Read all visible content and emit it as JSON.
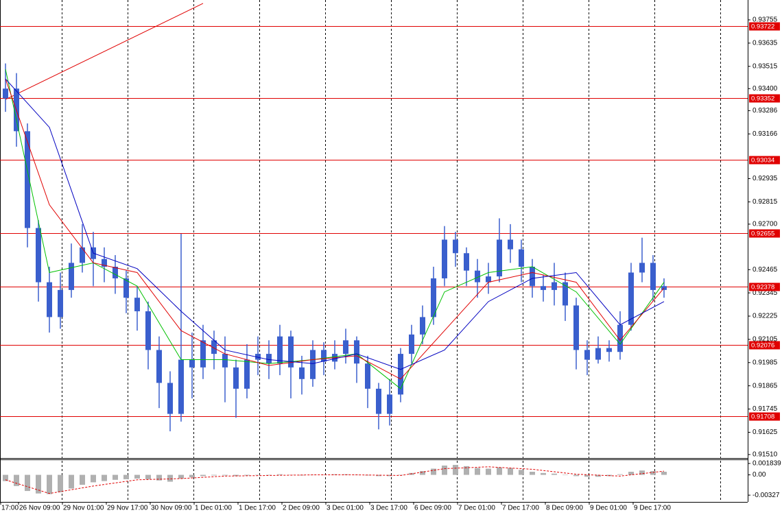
{
  "chart_data": {
    "type": "candlestick",
    "candle_color": "#3a5fcd",
    "open": [
      0.9335,
      0.934,
      0.9318,
      0.9268,
      0.924,
      0.9222,
      0.9236,
      0.925,
      0.9258,
      0.9252,
      0.9248,
      0.9242,
      0.9232,
      0.9225,
      0.9205,
      0.9188,
      0.9172,
      0.92,
      0.9196,
      0.921,
      0.9203,
      0.9196,
      0.9185,
      0.92,
      0.9203,
      0.9198,
      0.9212,
      0.9196,
      0.919,
      0.9205,
      0.9199,
      0.9203,
      0.921,
      0.9198,
      0.9185,
      0.9172,
      0.9182,
      0.9203,
      0.9213,
      0.9222,
      0.9242,
      0.9262,
      0.9255,
      0.9246,
      0.924,
      0.9243,
      0.9262,
      0.9257,
      0.9248,
      0.9238,
      0.9236,
      0.924,
      0.9228,
      0.9205,
      0.92,
      0.9206,
      0.9204,
      0.9218,
      0.9245,
      0.925,
      0.9236
    ],
    "high": [
      0.9353,
      0.9348,
      0.9322,
      0.9272,
      0.9248,
      0.9245,
      0.926,
      0.927,
      0.9266,
      0.9258,
      0.9254,
      0.9246,
      0.9238,
      0.923,
      0.9212,
      0.9194,
      0.9265,
      0.9214,
      0.9218,
      0.9215,
      0.9212,
      0.92,
      0.9208,
      0.9212,
      0.921,
      0.9218,
      0.9215,
      0.9202,
      0.921,
      0.9209,
      0.921,
      0.9216,
      0.9212,
      0.9202,
      0.9188,
      0.919,
      0.9206,
      0.9218,
      0.9228,
      0.9248,
      0.9269,
      0.9266,
      0.9258,
      0.9252,
      0.925,
      0.9273,
      0.927,
      0.9262,
      0.9252,
      0.9244,
      0.925,
      0.9245,
      0.9232,
      0.921,
      0.9212,
      0.921,
      0.9225,
      0.925,
      0.9263,
      0.9254,
      0.9242
    ],
    "low": [
      0.9328,
      0.931,
      0.9258,
      0.923,
      0.9214,
      0.9216,
      0.9232,
      0.9245,
      0.9238,
      0.924,
      0.9234,
      0.9224,
      0.9215,
      0.9195,
      0.9175,
      0.9163,
      0.9168,
      0.918,
      0.919,
      0.9195,
      0.9178,
      0.917,
      0.918,
      0.9192,
      0.919,
      0.9192,
      0.918,
      0.9182,
      0.9186,
      0.9192,
      0.9195,
      0.9198,
      0.9188,
      0.9175,
      0.9164,
      0.9166,
      0.9178,
      0.9198,
      0.9208,
      0.9218,
      0.9238,
      0.9248,
      0.9238,
      0.9232,
      0.9234,
      0.924,
      0.925,
      0.924,
      0.9232,
      0.923,
      0.9228,
      0.922,
      0.9195,
      0.9192,
      0.9198,
      0.9199,
      0.92,
      0.9215,
      0.924,
      0.923,
      0.9232
    ],
    "close": [
      0.934,
      0.9318,
      0.9268,
      0.924,
      0.9222,
      0.9236,
      0.925,
      0.9258,
      0.9252,
      0.9248,
      0.9242,
      0.9232,
      0.9225,
      0.9205,
      0.9188,
      0.9172,
      0.92,
      0.9196,
      0.921,
      0.9203,
      0.9196,
      0.9185,
      0.92,
      0.9203,
      0.9198,
      0.9212,
      0.9196,
      0.919,
      0.9205,
      0.9199,
      0.9203,
      0.921,
      0.9198,
      0.9185,
      0.9172,
      0.9182,
      0.9203,
      0.9213,
      0.9222,
      0.9242,
      0.9262,
      0.9255,
      0.9246,
      0.924,
      0.9243,
      0.9262,
      0.9257,
      0.9248,
      0.9238,
      0.9236,
      0.924,
      0.9228,
      0.9205,
      0.92,
      0.9206,
      0.9204,
      0.9218,
      0.9245,
      0.925,
      0.9236,
      0.9238
    ],
    "ylim": [
      0.91492,
      0.93847
    ],
    "yticks": [
      0.93755,
      0.93635,
      0.93515,
      {
        "value": 0.934,
        "label": "0.93400"
      },
      0.93286,
      0.93166,
      0.92935,
      0.92815,
      {
        "value": 0.927,
        "label": "0.92700"
      },
      0.92465,
      0.92345,
      0.92225,
      0.92105,
      0.91985,
      0.91865,
      0.91745,
      0.91625,
      {
        "value": 0.9151,
        "label": "0.91510"
      }
    ],
    "levels": {
      "color": "#e00000",
      "values": [
        0.93722,
        0.93352,
        0.93034,
        0.92655,
        0.92378,
        0.92076,
        0.91708
      ]
    },
    "trend_line": {
      "color": "#e00000",
      "x": [
        0,
        18
      ],
      "values": [
        0.93344,
        0.9384
      ]
    },
    "ma_x": [
      0,
      4,
      8,
      12,
      16,
      20,
      24,
      28,
      32,
      36,
      40,
      44,
      48,
      52,
      56,
      60
    ],
    "moving_averages": [
      {
        "color": "#00c000",
        "values": [
          0.935,
          0.9245,
          0.925,
          0.9238,
          0.92,
          0.92,
          0.9198,
          0.92,
          0.9203,
          0.9185,
          0.9235,
          0.9245,
          0.9248,
          0.9235,
          0.9208,
          0.924
        ]
      },
      {
        "color": "#e00000",
        "values": [
          0.9345,
          0.928,
          0.925,
          0.9245,
          0.9215,
          0.9203,
          0.9197,
          0.92,
          0.9202,
          0.919,
          0.9215,
          0.924,
          0.9245,
          0.924,
          0.921,
          0.9237
        ]
      },
      {
        "color": "#0000c0",
        "values": [
          0.9345,
          0.932,
          0.9255,
          0.9247,
          0.9225,
          0.9205,
          0.92,
          0.9198,
          0.9203,
          0.9195,
          0.9205,
          0.923,
          0.9242,
          0.9245,
          0.9218,
          0.923
        ]
      }
    ],
    "oscillator": {
      "ylim": [
        -0.00436,
        0.00238
      ],
      "yticks": [
        0.001839,
        {
          "value": 0,
          "label": "0.00"
        },
        -0.00327
      ],
      "histogram_color": "#b0b0b0",
      "signal_color": "#e00000",
      "histogram": [
        -0.001,
        -0.0018,
        -0.0026,
        -0.003,
        -0.0031,
        -0.0028,
        -0.0022,
        -0.0016,
        -0.0012,
        -0.001,
        -0.0008,
        -0.0007,
        -0.0006,
        -0.0007,
        -0.0009,
        -0.0011,
        -0.0006,
        -0.0004,
        -0.0002,
        -0.0001,
        -0.0001,
        -0.0002,
        -0.0001,
        0.0,
        0.0,
        0.0001,
        0.0,
        -0.0001,
        0.0,
        0.0,
        0.0001,
        0.0001,
        0.0,
        -0.0001,
        -0.0002,
        -0.0002,
        0.0,
        0.0003,
        0.0006,
        0.001,
        0.0015,
        0.0016,
        0.0014,
        0.0011,
        0.001,
        0.0012,
        0.0011,
        0.0008,
        0.0005,
        0.0003,
        0.0002,
        0.0,
        -0.0002,
        -0.0003,
        -0.0003,
        -0.0002,
        0.0001,
        0.0005,
        0.0007,
        0.0006,
        0.0005
      ],
      "signal": [
        -0.0008,
        -0.003,
        -0.0018,
        -0.0008,
        -0.0006,
        -0.0002,
        -0.0001,
        0.0,
        0.0,
        -0.0001,
        0.001,
        0.0013,
        0.0009,
        0.0001,
        -0.0002,
        0.0006
      ]
    },
    "time_labels": [
      "17:00",
      "26 Nov 09:00",
      "29 Nov 01:00",
      "29 Nov 17:00",
      "30 Nov 09:00",
      "1 Dec 01:00",
      "1 Dec 17:00",
      "2 Dec 09:00",
      "3 Dec 01:00",
      "3 Dec 17:00",
      "6 Dec 09:00",
      "7 Dec 01:00",
      "7 Dec 17:00",
      "8 Dec 09:00",
      "9 Dec 01:00",
      "9 Dec 17:00"
    ]
  }
}
